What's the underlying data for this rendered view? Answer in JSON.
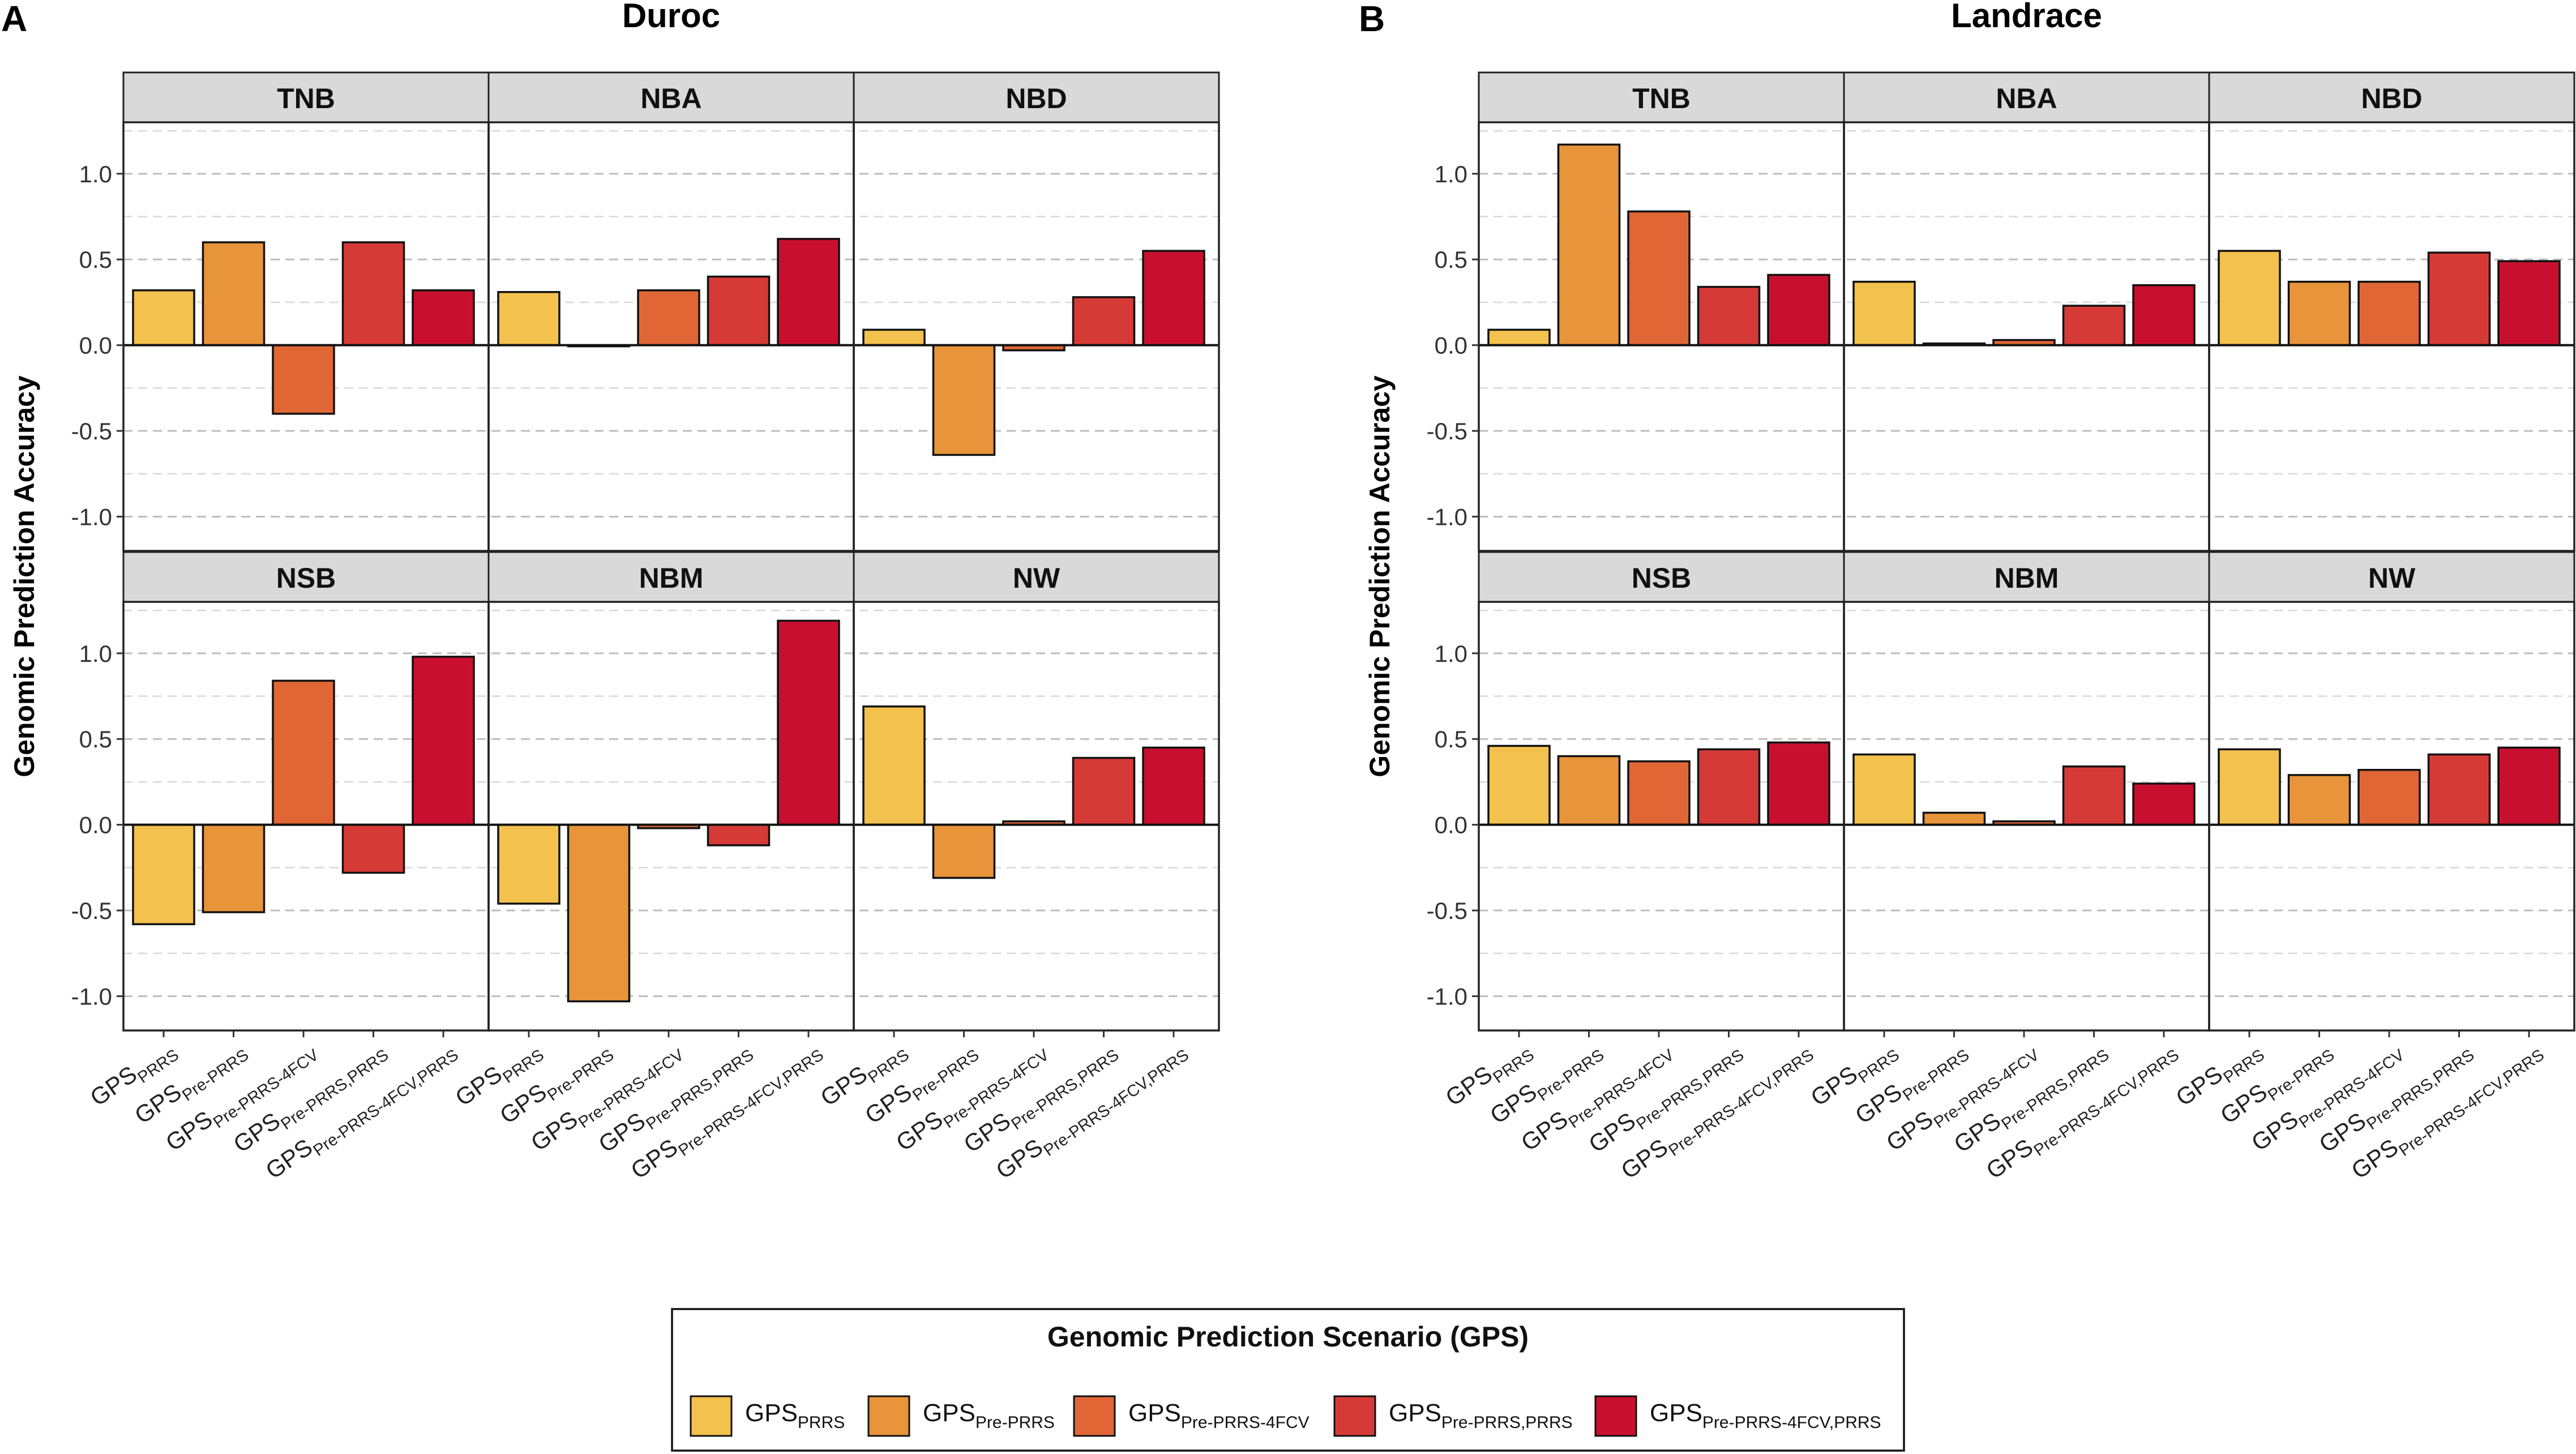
{
  "chart_data": {
    "type": "bar",
    "colors": [
      "#F2C14E",
      "#E8943A",
      "#E06636",
      "#D63A37",
      "#C8102E"
    ],
    "ylim": [
      -1.2,
      1.3
    ],
    "yticks": [
      -1.0,
      -0.5,
      0.0,
      0.5,
      1.0
    ],
    "ytick_labels": [
      "-1.0",
      "-0.5",
      "0.0",
      "0.5",
      "1.0"
    ],
    "ylabel": "Genomic Prediction Accuracy",
    "xlabels": [
      {
        "base": "GPS",
        "sub": "PRRS"
      },
      {
        "base": "GPS",
        "sub": "Pre-PRRS"
      },
      {
        "base": "GPS",
        "sub": "Pre-PRRS-4FCV"
      },
      {
        "base": "GPS",
        "sub": "Pre-PRRS,PRRS"
      },
      {
        "base": "GPS",
        "sub": "Pre-PRRS-4FCV,PRRS"
      }
    ],
    "legend": {
      "title": "Genomic Prediction Scenario (GPS)",
      "entries": [
        {
          "base": "GPS",
          "sub": "PRRS"
        },
        {
          "base": "GPS",
          "sub": "Pre-PRRS"
        },
        {
          "base": "GPS",
          "sub": "Pre-PRRS-4FCV"
        },
        {
          "base": "GPS",
          "sub": "Pre-PRRS,PRRS"
        },
        {
          "base": "GPS",
          "sub": "Pre-PRRS-4FCV,PRRS"
        }
      ]
    },
    "panels": [
      {
        "letter": "A",
        "title": "Duroc",
        "facets": [
          {
            "label": "TNB",
            "values": [
              0.32,
              0.6,
              -0.4,
              0.6,
              0.32
            ]
          },
          {
            "label": "NBA",
            "values": [
              0.31,
              0.0,
              0.32,
              0.4,
              0.62
            ]
          },
          {
            "label": "NBD",
            "values": [
              0.09,
              -0.64,
              -0.03,
              0.28,
              0.55
            ]
          },
          {
            "label": "NSB",
            "values": [
              -0.58,
              -0.51,
              0.84,
              -0.28,
              0.98
            ]
          },
          {
            "label": "NBM",
            "values": [
              -0.46,
              -1.03,
              -0.02,
              -0.12,
              1.19
            ]
          },
          {
            "label": "NW",
            "values": [
              0.69,
              -0.31,
              0.02,
              0.39,
              0.45
            ]
          }
        ]
      },
      {
        "letter": "B",
        "title": "Landrace",
        "facets": [
          {
            "label": "TNB",
            "values": [
              0.09,
              1.17,
              0.78,
              0.34,
              0.41
            ]
          },
          {
            "label": "NBA",
            "values": [
              0.37,
              0.01,
              0.03,
              0.23,
              0.35
            ]
          },
          {
            "label": "NBD",
            "values": [
              0.55,
              0.37,
              0.37,
              0.54,
              0.49
            ]
          },
          {
            "label": "NSB",
            "values": [
              0.46,
              0.4,
              0.37,
              0.44,
              0.48
            ]
          },
          {
            "label": "NBM",
            "values": [
              0.41,
              0.07,
              0.02,
              0.34,
              0.24
            ]
          },
          {
            "label": "NW",
            "values": [
              0.44,
              0.29,
              0.32,
              0.41,
              0.45
            ]
          }
        ]
      }
    ]
  }
}
